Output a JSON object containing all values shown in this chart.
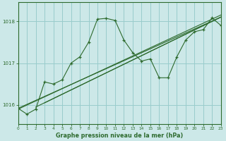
{
  "background_color": "#cce8e8",
  "plot_bg_color": "#cce8e8",
  "grid_color": "#99cccc",
  "line_color": "#2d6a2d",
  "xlim": [
    0,
    23
  ],
  "ylim": [
    1015.55,
    1018.45
  ],
  "yticks": [
    1016,
    1017,
    1018
  ],
  "xticks": [
    0,
    1,
    2,
    3,
    4,
    5,
    6,
    7,
    8,
    9,
    10,
    11,
    12,
    13,
    14,
    15,
    16,
    17,
    18,
    19,
    20,
    21,
    22,
    23
  ],
  "xlabel": "Graphe pression niveau de la mer (hPa)",
  "trend1_x": [
    0,
    23
  ],
  "trend1_y": [
    1015.9,
    1018.15
  ],
  "trend2_x": [
    0,
    23
  ],
  "trend2_y": [
    1015.92,
    1018.1
  ],
  "trend3_x": [
    2,
    23
  ],
  "trend3_y": [
    1015.95,
    1018.1
  ],
  "trend4_x": [
    3,
    23
  ],
  "trend4_y": [
    1016.05,
    1018.1
  ],
  "jagged_x": [
    0,
    1,
    2,
    3,
    4,
    5,
    6,
    7,
    8,
    9,
    10,
    11,
    12,
    13,
    14,
    15,
    16,
    17,
    18,
    19,
    20,
    21,
    22,
    23
  ],
  "jagged_y": [
    1015.92,
    1015.78,
    1015.9,
    1016.55,
    1016.5,
    1016.6,
    1017.0,
    1017.15,
    1017.5,
    1018.05,
    1018.07,
    1018.02,
    1017.55,
    1017.25,
    1017.05,
    1017.1,
    1016.65,
    1016.65,
    1017.15,
    1017.55,
    1017.75,
    1017.8,
    1018.08,
    1017.9
  ]
}
